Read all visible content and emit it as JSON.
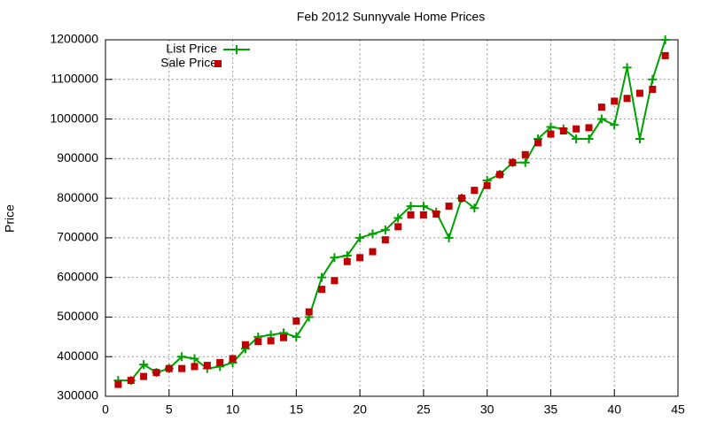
{
  "chart_data": {
    "type": "line",
    "title": "Feb 2012 Sunnyvale Home Prices",
    "y_label": "Price",
    "x": [
      1,
      2,
      3,
      4,
      5,
      6,
      7,
      8,
      9,
      10,
      11,
      12,
      13,
      14,
      15,
      16,
      17,
      18,
      19,
      20,
      21,
      22,
      23,
      24,
      25,
      26,
      27,
      28,
      29,
      30,
      31,
      32,
      33,
      34,
      35,
      36,
      37,
      38,
      39,
      40,
      41,
      42,
      43,
      44
    ],
    "series": [
      {
        "name": "List Price",
        "color": "#00a000",
        "style": "linespoints",
        "values": [
          340000,
          340000,
          380000,
          360000,
          370000,
          400000,
          395000,
          370000,
          375000,
          385000,
          420000,
          450000,
          455000,
          460000,
          450000,
          500000,
          600000,
          650000,
          655000,
          700000,
          710000,
          720000,
          750000,
          780000,
          780000,
          765000,
          700000,
          800000,
          775000,
          845000,
          860000,
          890000,
          890000,
          950000,
          980000,
          975000,
          950000,
          950000,
          1000000,
          985000,
          1130000,
          950000,
          1100000,
          1200000
        ]
      },
      {
        "name": "Sale Price",
        "color": "#c00000",
        "style": "points",
        "values": [
          330000,
          340000,
          350000,
          360000,
          370000,
          370000,
          375000,
          378000,
          385000,
          395000,
          430000,
          438000,
          440000,
          448000,
          490000,
          513000,
          570000,
          592000,
          640000,
          650000,
          665000,
          695000,
          728000,
          758000,
          758000,
          760000,
          780000,
          800000,
          820000,
          832000,
          860000,
          890000,
          910000,
          940000,
          962000,
          970000,
          975000,
          978000,
          1030000,
          1045000,
          1052000,
          1065000,
          1075000,
          1160000
        ]
      }
    ],
    "xlim": [
      0,
      45
    ],
    "xticks": [
      0,
      5,
      10,
      15,
      20,
      25,
      30,
      35,
      40,
      45
    ],
    "ylim": [
      300000,
      1200000
    ],
    "yticks": [
      300000,
      400000,
      500000,
      600000,
      700000,
      800000,
      900000,
      1000000,
      1100000,
      1200000
    ],
    "grid": true,
    "legend": "top-left"
  }
}
